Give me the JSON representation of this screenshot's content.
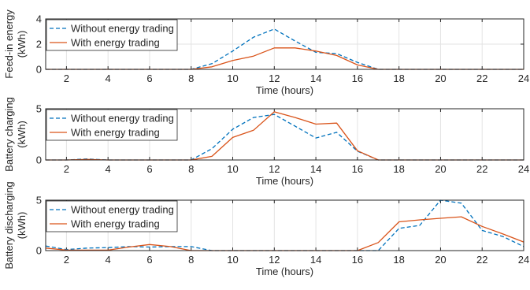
{
  "chart_data": [
    {
      "type": "line",
      "xlabel": "Time (hours)",
      "ylabel": "Feed-in energy",
      "yunit": "(kWh)",
      "xlim": [
        1,
        24
      ],
      "ylim": [
        0,
        4
      ],
      "xticks": [
        "2",
        "4",
        "6",
        "8",
        "10",
        "12",
        "14",
        "16",
        "18",
        "20",
        "22",
        "24"
      ],
      "yticks": [
        "0",
        "2",
        "4"
      ],
      "legend_position": "top-left",
      "grid": true,
      "x": [
        1,
        2,
        3,
        4,
        5,
        6,
        7,
        8,
        9,
        10,
        11,
        12,
        13,
        14,
        15,
        16,
        17,
        18,
        19,
        20,
        21,
        22,
        23,
        24
      ],
      "series": [
        {
          "name": "Without energy trading",
          "style": "dashed",
          "color": "#0072BD",
          "values": [
            0,
            0,
            0,
            0,
            0,
            0,
            0,
            0,
            0.45,
            1.45,
            2.55,
            3.2,
            2.25,
            1.35,
            1.25,
            0.55,
            0,
            0,
            0,
            0,
            0,
            0,
            0,
            0
          ]
        },
        {
          "name": "With energy trading",
          "style": "solid",
          "color": "#D95319",
          "values": [
            0,
            0,
            0,
            0,
            0,
            0,
            0,
            0,
            0.2,
            0.7,
            1.05,
            1.7,
            1.7,
            1.45,
            1.1,
            0.35,
            0,
            0,
            0,
            0,
            0,
            0,
            0,
            0
          ]
        }
      ]
    },
    {
      "type": "line",
      "xlabel": "Time (hours)",
      "ylabel": "Battery charging",
      "yunit": "(kWh)",
      "xlim": [
        1,
        24
      ],
      "ylim": [
        0,
        5
      ],
      "xticks": [
        "2",
        "4",
        "6",
        "8",
        "10",
        "12",
        "14",
        "16",
        "18",
        "20",
        "22",
        "24"
      ],
      "yticks": [
        "0",
        "5"
      ],
      "legend_position": "top-left",
      "grid": true,
      "x": [
        1,
        2,
        3,
        4,
        5,
        6,
        7,
        8,
        9,
        10,
        11,
        12,
        13,
        14,
        15,
        16,
        17,
        18,
        19,
        20,
        21,
        22,
        23,
        24
      ],
      "series": [
        {
          "name": "Without energy trading",
          "style": "dashed",
          "color": "#0072BD",
          "values": [
            0,
            0,
            0.1,
            0,
            0,
            0,
            0,
            0,
            1.1,
            3.0,
            4.15,
            4.45,
            3.3,
            2.15,
            2.7,
            0.85,
            0,
            0,
            0,
            0,
            0,
            0,
            0,
            0
          ]
        },
        {
          "name": "With energy trading",
          "style": "solid",
          "color": "#D95319",
          "values": [
            0,
            0,
            0.05,
            0,
            0,
            0,
            0,
            0,
            0.35,
            2.2,
            2.9,
            4.7,
            4.15,
            3.5,
            3.6,
            0.9,
            0,
            0,
            0,
            0,
            0,
            0,
            0,
            0
          ]
        }
      ]
    },
    {
      "type": "line",
      "xlabel": "Time (hours)",
      "ylabel": "Battery discharging",
      "yunit": "(kWh)",
      "xlim": [
        1,
        24
      ],
      "ylim": [
        0,
        5
      ],
      "xticks": [
        "2",
        "4",
        "6",
        "8",
        "10",
        "12",
        "14",
        "16",
        "18",
        "20",
        "22",
        "24"
      ],
      "yticks": [
        "0",
        "5"
      ],
      "legend_position": "top-left",
      "grid": true,
      "x": [
        1,
        2,
        3,
        4,
        5,
        6,
        7,
        8,
        9,
        10,
        11,
        12,
        13,
        14,
        15,
        16,
        17,
        18,
        19,
        20,
        21,
        22,
        23,
        24
      ],
      "series": [
        {
          "name": "Without energy trading",
          "style": "dashed",
          "color": "#0072BD",
          "values": [
            0.45,
            0.1,
            0.25,
            0.3,
            0.4,
            0.35,
            0.4,
            0.4,
            0,
            0,
            0,
            0,
            0,
            0,
            0,
            0,
            0,
            2.2,
            2.5,
            5.0,
            4.7,
            2.0,
            1.4,
            0.4
          ]
        },
        {
          "name": "With energy trading",
          "style": "solid",
          "color": "#D95319",
          "values": [
            0.25,
            0.05,
            0.05,
            0.05,
            0.35,
            0.6,
            0.4,
            0,
            0,
            0,
            0,
            0,
            0,
            0,
            0,
            0,
            0.8,
            2.85,
            3.05,
            3.2,
            3.35,
            2.4,
            1.65,
            0.85
          ]
        }
      ]
    }
  ]
}
